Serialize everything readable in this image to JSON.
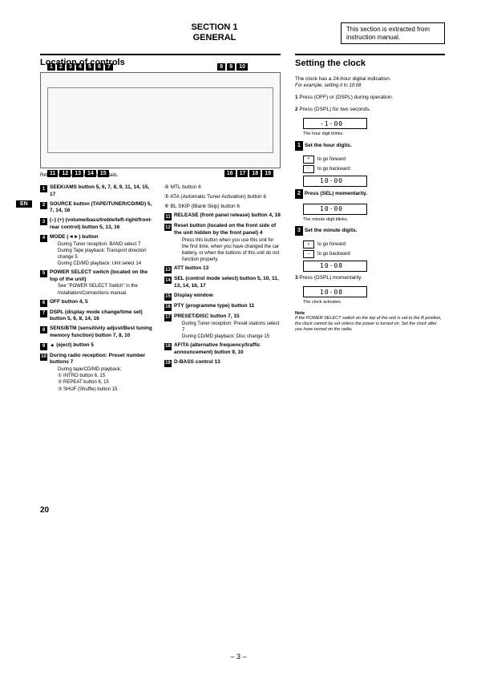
{
  "header": {
    "section": "SECTION  1",
    "sub": "GENERAL"
  },
  "notice": "This section is extracted from instruction manual.",
  "left": {
    "heading": "Location of controls",
    "callouts_top_left": [
      "1",
      "2",
      "3",
      "4",
      "5",
      "6",
      "7"
    ],
    "callouts_top_right": [
      "8",
      "9",
      "10"
    ],
    "callouts_bot_left": [
      "11",
      "12",
      "13",
      "14",
      "15"
    ],
    "callouts_bot_right": [
      "16",
      "17",
      "18",
      "19"
    ],
    "caption": "Refer to the pages for further details.",
    "col1": [
      {
        "n": "1",
        "t": "SEEK/AMS button 5, 6, 7, 8, 9, 11, 14, 15, 17",
        "b": true
      },
      {
        "n": "2",
        "t": "SOURCE button (TAPE/TUNER/CD/MD) 5, 7, 14, 16",
        "b": true
      },
      {
        "n": "3",
        "t": "(–) (+) (volume/bass/treble/left-right/front-rear control) button 5, 13, 16",
        "b": true
      },
      {
        "n": "4",
        "t": "MODE (◄►) button",
        "b": true,
        "subs": [
          "During Tuner reception:\n  BAND select 7",
          "During Tape playback:\n  Transport direction change 5",
          "During CD/MD playback:\n  Unit select 14"
        ]
      },
      {
        "n": "5",
        "t": "POWER SELECT switch (located on the top of the unit)",
        "b": true,
        "subs": [
          "See \"POWER SELECT Switch\" in the Installation/Connections manual."
        ]
      },
      {
        "n": "6",
        "t": "OFF button 4, 5",
        "b": true
      },
      {
        "n": "7",
        "t": "DSPL (display mode change/time set) button 5, 6, 8, 14, 16",
        "b": true
      },
      {
        "n": "8",
        "t": "SENS/BTM (sensitivity adjust/Best tuning memory function) button 7, 8, 10",
        "b": true
      },
      {
        "n": "9",
        "t": "▲ (eject) button 5",
        "b": true
      },
      {
        "n": "10",
        "t": "During radio reception:\n  Preset number buttons 7",
        "b": true,
        "subs": [
          "During tape/CD/MD playback:",
          "① INTRO button 6, 15",
          "② REPEAT button 6, 15",
          "③ SHUF (Shuffle) button 15"
        ]
      }
    ],
    "col2": [
      {
        "n": "",
        "t": "④ MTL button 6"
      },
      {
        "n": "",
        "t": "⑤ ATA (Automatic Tuner Activation) button 6"
      },
      {
        "n": "",
        "t": "⑥ BL SKIP (Blank Skip) button 6"
      },
      {
        "n": "11",
        "t": "RELEASE (front panel release) button 4, 18",
        "b": true
      },
      {
        "n": "12",
        "t": "Reset button (located on the front side of the unit hidden by the front panel) 4",
        "b": true,
        "subs": [
          "Press this button when you use this unit for the first time, when you have changed the car battery, or when the buttons of this unit do not function properly."
        ]
      },
      {
        "n": "13",
        "t": "ATT button 13",
        "b": true
      },
      {
        "n": "14",
        "t": "SEL (control mode select) button 5, 10, 11, 13, 14, 16, 17",
        "b": true
      },
      {
        "n": "15",
        "t": "Display window",
        "b": true
      },
      {
        "n": "16",
        "t": "PTY (programme type) button 11",
        "b": true
      },
      {
        "n": "17",
        "t": "PRESET/DISC button 7, 15",
        "b": true,
        "subs": [
          "During Tuner reception:\n  Preset stations select 7",
          "During CD/MD playback:\n  Disc change 15"
        ]
      },
      {
        "n": "18",
        "t": "AF/TA (alternative frequency/traffic announcement) button 9, 10",
        "b": true
      },
      {
        "n": "19",
        "t": "D-BASS control 13",
        "b": true
      }
    ]
  },
  "right": {
    "heading": "Setting the clock",
    "intro": "The clock has a 24-hour digital indication.",
    "example": "For example, setting it to 10:08",
    "step1": "Press (OFF) or (DSPL) during operation.",
    "step2": "Press (DSPL) for two seconds.",
    "disp1": "·1·00",
    "cap1": "The hour digit blinks.",
    "sub1": "Set the hour digits.",
    "fwd": "to go forward",
    "back": "to go backward",
    "disp2": "10·00",
    "sub2": "Press (SEL) momentarily.",
    "disp3": "10·00",
    "cap3": "The minute digit blinks.",
    "sub3": "Set the minute digits.",
    "disp4": "10·08",
    "step3": "Press (DSPL) momentarily.",
    "disp5": "10·08",
    "cap5": "The clock activates.",
    "note_h": "Note",
    "note": "If the POWER SELECT switch on the top of the unit is set to the B position, the clock cannot be set unless the power is turned on. Set the clock after you have turned on the radio."
  },
  "page_left": "20",
  "page_center": "– 3 –",
  "en_tag": "EN"
}
